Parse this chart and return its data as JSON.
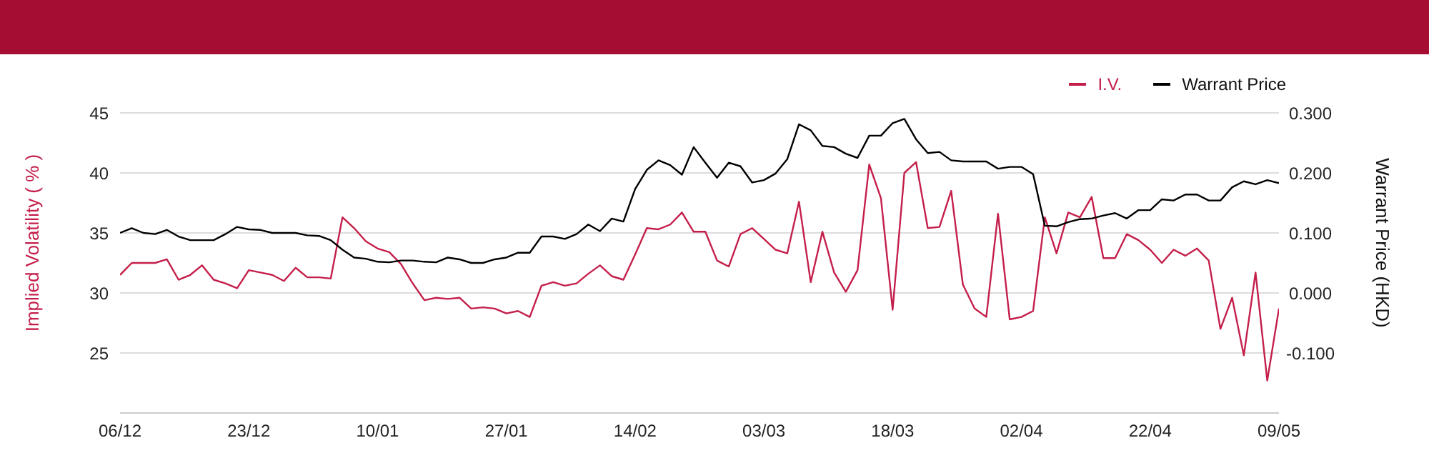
{
  "chart_data": {
    "type": "line",
    "xlabel": null,
    "ylabel": "Implied Volatility ( % )",
    "y2label": "Warrant Price (HKD)",
    "categories": [
      "06/12",
      null,
      null,
      null,
      null,
      null,
      null,
      null,
      null,
      null,
      null,
      "23/12",
      null,
      null,
      null,
      null,
      null,
      null,
      null,
      null,
      null,
      null,
      "10/01",
      null,
      null,
      null,
      null,
      null,
      null,
      null,
      null,
      null,
      null,
      "27/01",
      null,
      null,
      null,
      null,
      null,
      null,
      null,
      null,
      null,
      null,
      "14/02",
      null,
      null,
      null,
      null,
      null,
      null,
      null,
      null,
      null,
      null,
      "03/03",
      null,
      null,
      null,
      null,
      null,
      null,
      null,
      null,
      null,
      null,
      "18/03",
      null,
      null,
      null,
      null,
      null,
      null,
      null,
      null,
      null,
      null,
      "02/04",
      null,
      null,
      null,
      null,
      null,
      null,
      null,
      null,
      null,
      null,
      "22/04",
      null,
      null,
      null,
      null,
      null,
      null,
      null,
      null,
      null,
      null,
      "09/05"
    ],
    "series": [
      {
        "name": "I.V.",
        "color": "#c41f4a",
        "values": [
          31.5,
          32.5,
          32.5,
          32.5,
          32.8,
          31.1,
          31.5,
          32.3,
          31.1,
          30.8,
          30.4,
          31.9,
          31.7,
          31.5,
          31.0,
          32.1,
          31.3,
          31.3,
          31.2,
          36.3,
          35.4,
          34.3,
          33.7,
          33.4,
          32.4,
          30.8,
          29.4,
          29.6,
          29.5,
          29.6,
          28.7,
          28.8,
          28.7,
          28.3,
          28.5,
          28.0,
          30.6,
          30.9,
          30.6,
          30.8,
          31.6,
          32.3,
          31.4,
          31.1,
          33.2,
          35.4,
          35.3,
          35.7,
          36.7,
          35.1,
          35.1,
          32.7,
          32.2,
          34.9,
          35.4,
          34.5,
          33.6,
          33.3,
          37.6,
          30.9,
          35.1,
          31.7,
          30.1,
          31.9,
          40.7,
          37.9,
          28.6,
          40.0,
          40.9,
          35.4,
          35.5,
          38.5,
          30.7,
          28.7,
          28.0,
          36.6,
          27.8,
          28.0,
          28.5,
          36.3,
          33.3,
          36.7,
          36.3,
          38.0,
          32.9,
          32.9,
          34.9,
          34.4,
          33.6,
          32.5,
          33.6,
          33.1,
          33.7,
          32.7,
          27.0,
          29.6,
          24.8,
          31.7,
          22.7,
          28.7
        ]
      },
      {
        "name": "Warrant Price",
        "color": "#000000",
        "axis": "y2",
        "values": [
          0.1,
          0.108,
          0.1,
          0.098,
          0.105,
          0.094,
          0.088,
          0.088,
          0.088,
          0.098,
          0.11,
          0.106,
          0.105,
          0.1,
          0.1,
          0.1,
          0.096,
          0.095,
          0.088,
          0.072,
          0.059,
          0.057,
          0.052,
          0.051,
          0.054,
          0.054,
          0.052,
          0.051,
          0.059,
          0.056,
          0.05,
          0.05,
          0.056,
          0.059,
          0.067,
          0.067,
          0.094,
          0.094,
          0.09,
          0.098,
          0.114,
          0.103,
          0.124,
          0.119,
          0.173,
          0.205,
          0.221,
          0.213,
          0.197,
          0.243,
          0.217,
          0.192,
          0.217,
          0.211,
          0.184,
          0.188,
          0.199,
          0.223,
          0.281,
          0.271,
          0.245,
          0.243,
          0.232,
          0.225,
          0.262,
          0.262,
          0.283,
          0.29,
          0.256,
          0.233,
          0.235,
          0.221,
          0.219,
          0.219,
          0.219,
          0.207,
          0.21,
          0.21,
          0.198,
          0.112,
          0.111,
          0.118,
          0.123,
          0.124,
          0.129,
          0.133,
          0.124,
          0.138,
          0.138,
          0.156,
          0.154,
          0.164,
          0.164,
          0.154,
          0.154,
          0.176,
          0.186,
          0.181,
          0.188,
          0.183
        ]
      }
    ],
    "ylim": [
      20,
      45
    ],
    "yticks": [
      25,
      30,
      35,
      40,
      45
    ],
    "y2lim": [
      -0.2,
      0.3
    ],
    "y2ticks": [
      {
        "value": -0.1,
        "label": "-0.100"
      },
      {
        "value": 0,
        "label": "0.000"
      },
      {
        "value": 0.1,
        "label": "0.100"
      },
      {
        "value": 0.2,
        "label": "0.200"
      },
      {
        "value": 0.3,
        "label": "0.300"
      }
    ],
    "grid": "y",
    "legend": "top right",
    "marker": "none",
    "line_style": "solid"
  }
}
